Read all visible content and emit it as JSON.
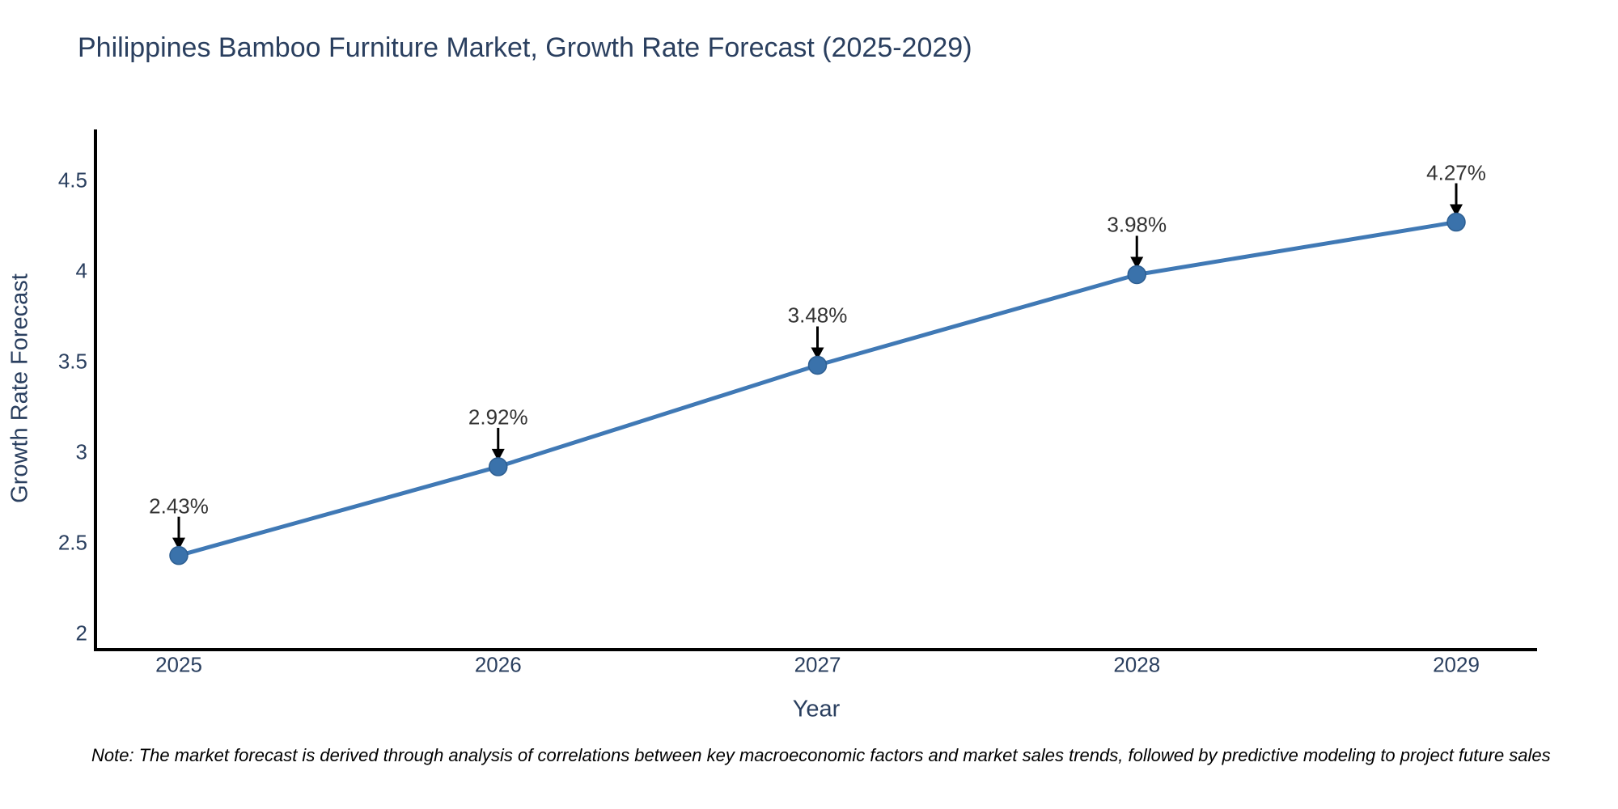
{
  "title": "Philippines Bamboo Furniture Market, Growth Rate Forecast (2025-2029)",
  "note": "Note: The market forecast is derived through analysis of correlations between key macroeconomic factors and market sales trends, followed by predictive modeling to project future sales",
  "chart_data": {
    "type": "line",
    "title": "Philippines Bamboo Furniture Market, Growth Rate Forecast (2025-2029)",
    "xlabel": "Year",
    "ylabel": "Growth Rate Forecast",
    "x": [
      2025,
      2026,
      2027,
      2028,
      2029
    ],
    "x_tick_labels": [
      "2025",
      "2026",
      "2027",
      "2028",
      "2029"
    ],
    "values": [
      2.43,
      2.92,
      3.48,
      3.98,
      4.27
    ],
    "labels": [
      "2.43%",
      "2.92%",
      "3.48%",
      "3.98%",
      "4.27%"
    ],
    "y_ticks": [
      4.5,
      4,
      3.5,
      3,
      2.5,
      2
    ],
    "y_tick_labels": [
      "4.5",
      "4",
      "3.5",
      "3",
      "2.5",
      "2"
    ],
    "ylim": [
      1.92,
      4.86
    ],
    "xlim": [
      2024.74,
      2029.25
    ],
    "grid": false,
    "legend_position": "none",
    "annotation_style": "black-down-arrows",
    "colors": {
      "line": "#4079b5",
      "marker_fill": "#3a72ab",
      "marker_edge": "#2e5f92",
      "axis_line": "#000000",
      "arrow": "#000000",
      "title_text": "#2a3f5f",
      "tick_text": "#2a3f5f",
      "label_text": "#333333",
      "note_text": "#000000",
      "background": "#ffffff"
    }
  }
}
